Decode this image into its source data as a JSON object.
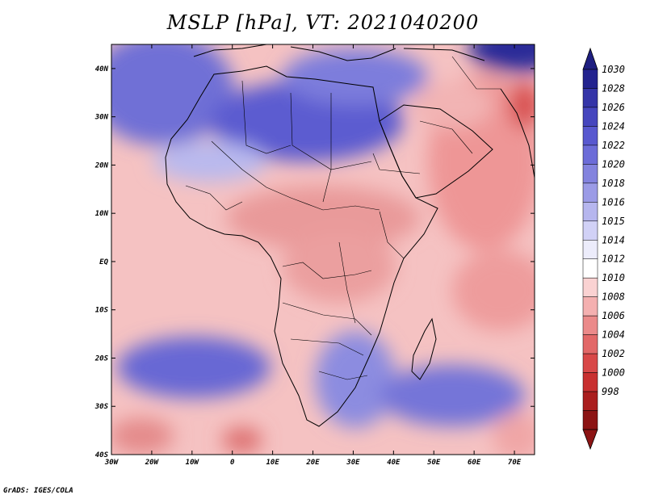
{
  "title": "MSLP [hPa], VT: 2021040200",
  "credit": "GrADS: IGES/COLA",
  "map": {
    "variable": "MSLP",
    "units": "hPa",
    "valid_time": "2021040200",
    "lat_range": [
      -40,
      45
    ],
    "lon_range": [
      -30,
      75
    ],
    "lat_ticks": [
      {
        "v": 40,
        "label": "40N"
      },
      {
        "v": 30,
        "label": "30N"
      },
      {
        "v": 20,
        "label": "20N"
      },
      {
        "v": 10,
        "label": "10N"
      },
      {
        "v": 0,
        "label": "EQ"
      },
      {
        "v": -10,
        "label": "10S"
      },
      {
        "v": -20,
        "label": "20S"
      },
      {
        "v": -30,
        "label": "30S"
      },
      {
        "v": -40,
        "label": "40S"
      }
    ],
    "lon_ticks": [
      {
        "v": -30,
        "label": "30W"
      },
      {
        "v": -20,
        "label": "20W"
      },
      {
        "v": -10,
        "label": "10W"
      },
      {
        "v": 0,
        "label": "0"
      },
      {
        "v": 10,
        "label": "10E"
      },
      {
        "v": 20,
        "label": "20E"
      },
      {
        "v": 30,
        "label": "30E"
      },
      {
        "v": 40,
        "label": "40E"
      },
      {
        "v": 50,
        "label": "50E"
      },
      {
        "v": 60,
        "label": "60E"
      },
      {
        "v": 70,
        "label": "70E"
      }
    ]
  },
  "colorbar": {
    "levels": [
      "1030",
      "1028",
      "1026",
      "1024",
      "1022",
      "1020",
      "1018",
      "1016",
      "1015",
      "1014",
      "1012",
      "1010",
      "1008",
      "1006",
      "1004",
      "1002",
      "1000",
      "998"
    ],
    "colors": [
      "#23238f",
      "#3535a8",
      "#4646be",
      "#5858cf",
      "#6c6cd8",
      "#8383de",
      "#9b9be6",
      "#b6b6ee",
      "#d1d1f6",
      "#ececfb",
      "#ffffff",
      "#fad2d2",
      "#f4b0b0",
      "#eb8a8a",
      "#e26868",
      "#d84848",
      "#c83030",
      "#aa1e1e",
      "#8c1414"
    ],
    "top_color": "#1e1e80",
    "bottom_color": "#8c1414"
  }
}
